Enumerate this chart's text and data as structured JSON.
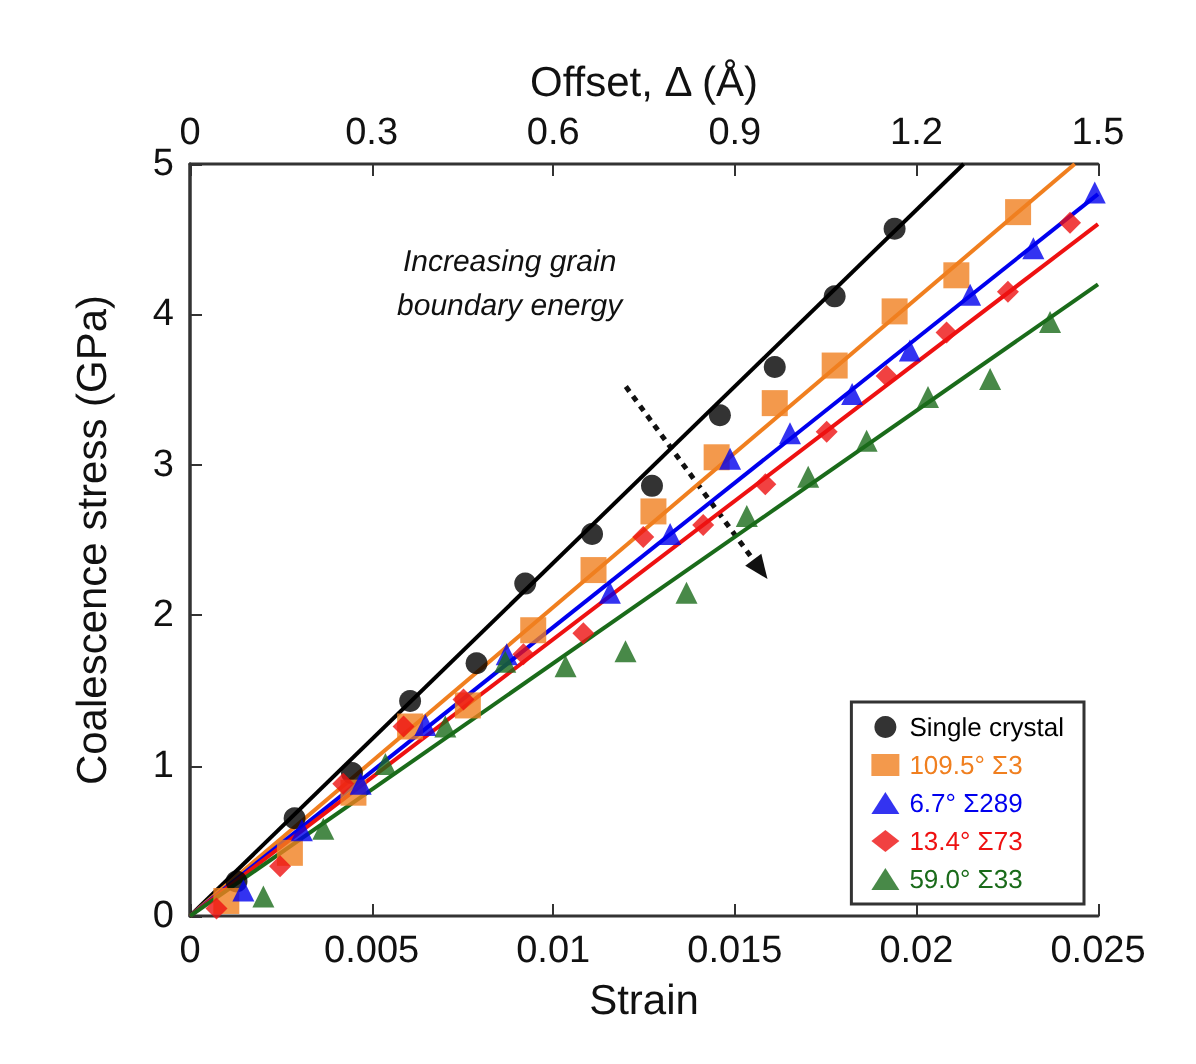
{
  "chart_data": {
    "type": "scatter",
    "xlabel": "Strain",
    "ylabel": "Coalescence stress (GPa)",
    "x2label": "Offset, Δ (Å)",
    "xlim": [
      0,
      0.025
    ],
    "xticks": [
      0,
      0.005,
      0.01,
      0.015,
      0.02,
      0.025
    ],
    "ylim": [
      0,
      5
    ],
    "yticks": [
      0,
      1,
      2,
      3,
      4,
      5
    ],
    "x2lim": [
      0,
      1.5
    ],
    "x2ticks": [
      0,
      0.3,
      0.6,
      0.9,
      1.2,
      1.5
    ],
    "grid": false,
    "legend": "bottom right",
    "annotations": [
      "Increasing grain\nboundary energy"
    ],
    "series": [
      {
        "name": "Single crystal",
        "color": "#000000",
        "marker": "circle",
        "x": [
          0.00128,
          0.00288,
          0.00446,
          0.00606,
          0.00789,
          0.00923,
          0.01107,
          0.01272,
          0.01459,
          0.0161,
          0.01775,
          0.0194
        ],
        "values": [
          0.23,
          0.65,
          0.95,
          1.43,
          1.68,
          2.21,
          2.54,
          2.86,
          3.33,
          3.65,
          4.12,
          4.57
        ]
      },
      {
        "name": "109.5° Σ3",
        "color": "#f07f1f",
        "marker": "square",
        "x": [
          0.001,
          0.00275,
          0.0045,
          0.00606,
          0.00765,
          0.00945,
          0.01111,
          0.01276,
          0.0145,
          0.0161,
          0.01775,
          0.0194,
          0.0211,
          0.0228
        ],
        "values": [
          0.1,
          0.42,
          0.82,
          1.26,
          1.4,
          1.9,
          2.3,
          2.69,
          3.05,
          3.41,
          3.66,
          4.02,
          4.26,
          4.68
        ]
      },
      {
        "name": "6.7° Σ289",
        "color": "#0000ee",
        "marker": "triangle",
        "x": [
          0.00147,
          0.00308,
          0.0047,
          0.00648,
          0.00872,
          0.01156,
          0.01322,
          0.01487,
          0.01652,
          0.01823,
          0.01982,
          0.02148,
          0.02322,
          0.02491
        ],
        "values": [
          0.17,
          0.57,
          0.88,
          1.27,
          1.74,
          2.15,
          2.54,
          3.04,
          3.21,
          3.47,
          3.76,
          4.13,
          4.44,
          4.81
        ]
      },
      {
        "name": "13.4° Σ73",
        "color": "#ee1111",
        "marker": "diamond",
        "x": [
          0.00073,
          0.00248,
          0.00422,
          0.00588,
          0.00753,
          0.00918,
          0.01083,
          0.01248,
          0.01413,
          0.01584,
          0.01753,
          0.01918,
          0.02083,
          0.02252,
          0.02423
        ],
        "values": [
          0.05,
          0.33,
          0.88,
          1.26,
          1.44,
          1.74,
          1.88,
          2.52,
          2.6,
          2.87,
          3.22,
          3.59,
          3.88,
          4.15,
          4.61
        ]
      },
      {
        "name": "59.0° Σ33",
        "color": "#1a6b1a",
        "marker": "triangle",
        "x": [
          0.00202,
          0.00367,
          0.00538,
          0.00703,
          0.00868,
          0.01034,
          0.01199,
          0.01367,
          0.01533,
          0.01702,
          0.01863,
          0.02032,
          0.02203,
          0.02368
        ],
        "values": [
          0.13,
          0.58,
          1.01,
          1.26,
          1.69,
          1.66,
          1.76,
          2.15,
          2.66,
          2.92,
          3.16,
          3.45,
          3.57,
          3.95
        ]
      },
      {
        "type": "line",
        "color": "#000000",
        "x": [
          0,
          0.0213
        ],
        "values": [
          0,
          5
        ]
      },
      {
        "type": "line",
        "color": "#f07f1f",
        "x": [
          0,
          0.02436
        ],
        "values": [
          0,
          5
        ]
      },
      {
        "type": "line",
        "color": "#0000ee",
        "x": [
          0,
          0.025
        ],
        "values": [
          0,
          4.8
        ]
      },
      {
        "type": "line",
        "color": "#ee1111",
        "x": [
          0,
          0.025
        ],
        "values": [
          0,
          4.6
        ]
      },
      {
        "type": "line",
        "color": "#1a6b1a",
        "x": [
          0,
          0.025
        ],
        "values": [
          0,
          4.2
        ]
      }
    ]
  }
}
